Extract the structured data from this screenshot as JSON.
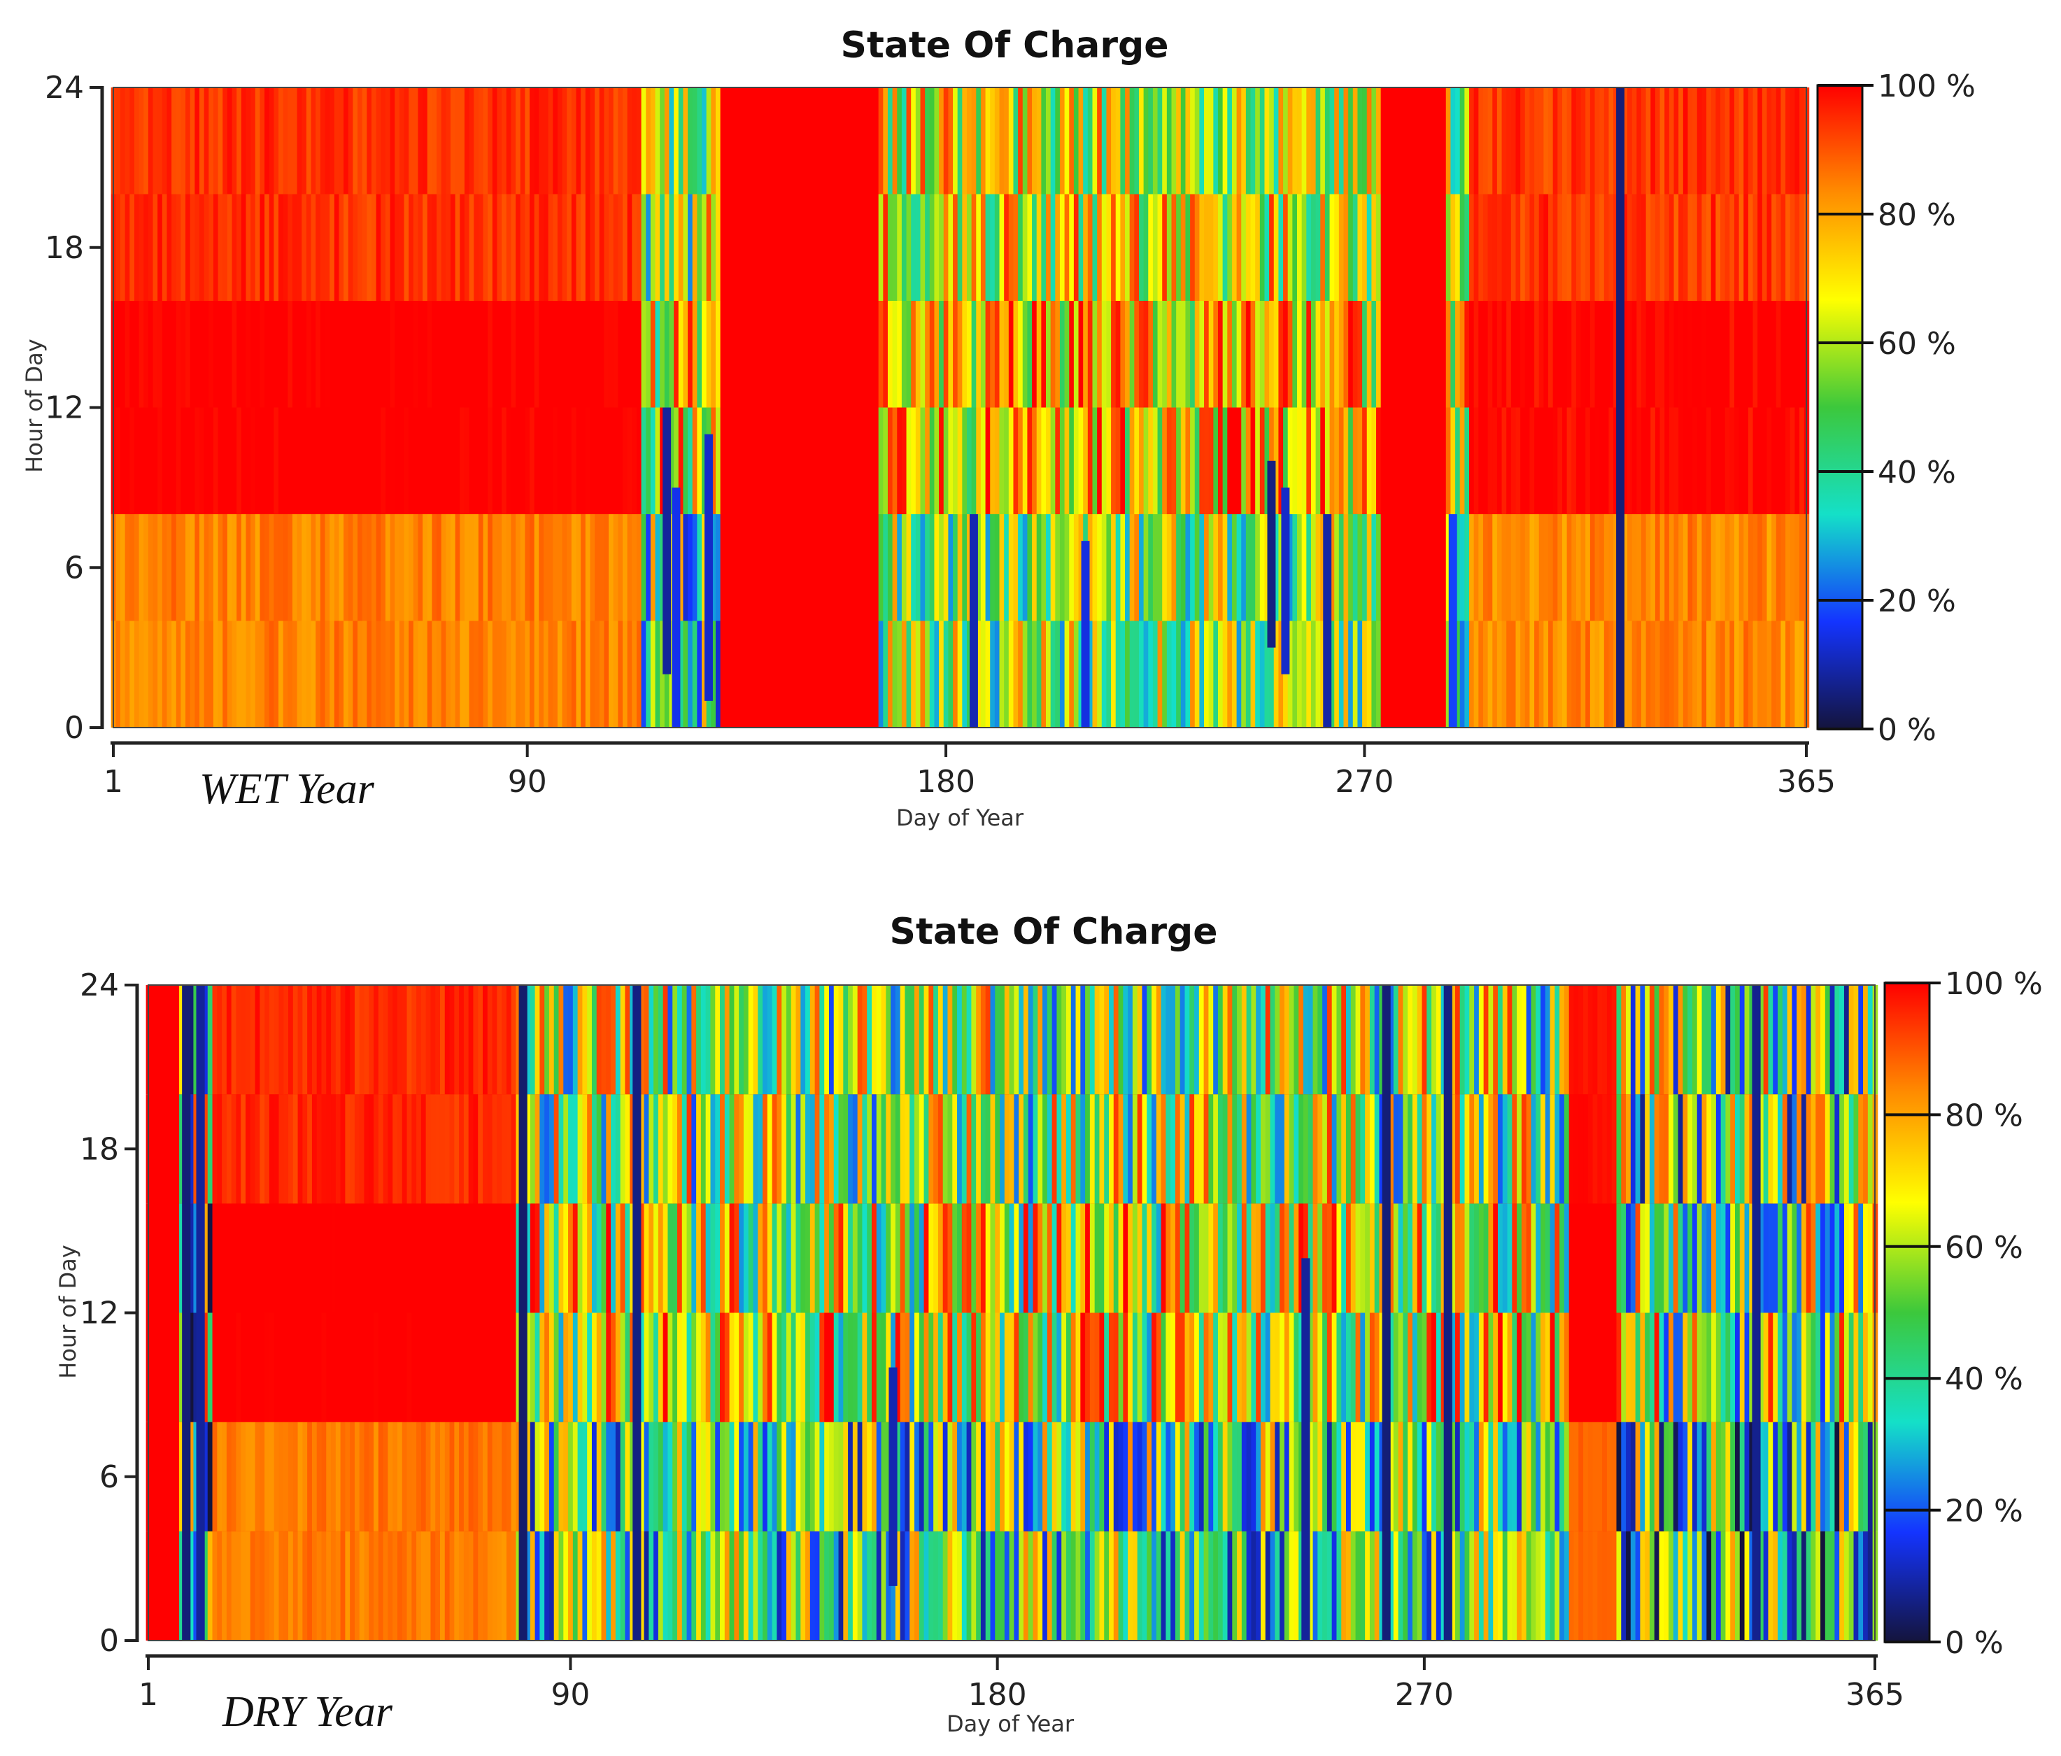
{
  "chart_data": [
    {
      "type": "heatmap",
      "title": "State Of Charge",
      "panel_label": "WET Year",
      "xlabel": "Day of Year",
      "ylabel": "Hour of Day",
      "xlim": [
        1,
        365
      ],
      "ylim": [
        0,
        24
      ],
      "x_ticks": [
        "1",
        "90",
        "180",
        "270",
        "365"
      ],
      "y_ticks": [
        "0",
        "6",
        "12",
        "18",
        "24"
      ],
      "colorbar": {
        "min": 0,
        "max": 100,
        "ticks": [
          "0 %",
          "20 %",
          "40 %",
          "60 %",
          "80 %",
          "100 %"
        ]
      },
      "colormap": [
        "#14143c",
        "#1434ff",
        "#14e0c8",
        "#3cc83c",
        "#ffff00",
        "#ff8c00",
        "#ff0000"
      ],
      "dark_events": [
        {
          "day": 120,
          "from_hour": 2,
          "to_hour": 12,
          "soc": 8
        },
        {
          "day": 122,
          "from_hour": 0,
          "to_hour": 9,
          "soc": 15
        },
        {
          "day": 129,
          "from_hour": 1,
          "to_hour": 11,
          "soc": 12
        },
        {
          "day": 186,
          "from_hour": 0,
          "to_hour": 8,
          "soc": 10
        },
        {
          "day": 210,
          "from_hour": 0,
          "to_hour": 7,
          "soc": 14
        },
        {
          "day": 250,
          "from_hour": 3,
          "to_hour": 10,
          "soc": 6
        },
        {
          "day": 253,
          "from_hour": 2,
          "to_hour": 9,
          "soc": 12
        },
        {
          "day": 262,
          "from_hour": 0,
          "to_hour": 8,
          "soc": 9
        },
        {
          "day": 289,
          "from_hour": 0,
          "to_hour": 8,
          "soc": 18
        },
        {
          "day": 325,
          "from_hour": 0,
          "to_hour": 24,
          "soc": 5
        }
      ],
      "mean_soc_by_day": [
        {
          "from_day": 1,
          "to_day": 114,
          "soc": 94
        },
        {
          "from_day": 115,
          "to_day": 131,
          "soc": 55
        },
        {
          "from_day": 132,
          "to_day": 165,
          "soc": 100
        },
        {
          "from_day": 166,
          "to_day": 273,
          "soc": 62
        },
        {
          "from_day": 274,
          "to_day": 287,
          "soc": 100
        },
        {
          "from_day": 288,
          "to_day": 292,
          "soc": 60
        },
        {
          "from_day": 293,
          "to_day": 365,
          "soc": 93
        }
      ]
    },
    {
      "type": "heatmap",
      "title": "State Of Charge",
      "panel_label": "DRY Year",
      "xlabel": "Day of Year",
      "ylabel": "Hour of Day",
      "xlim": [
        1,
        365
      ],
      "ylim": [
        0,
        24
      ],
      "x_ticks": [
        "1",
        "90",
        "180",
        "270",
        "365"
      ],
      "y_ticks": [
        "0",
        "6",
        "12",
        "18",
        "24"
      ],
      "colorbar": {
        "min": 0,
        "max": 100,
        "ticks": [
          "0 %",
          "20 %",
          "40 %",
          "60 %",
          "80 %",
          "100 %"
        ]
      },
      "colormap": [
        "#14143c",
        "#1434ff",
        "#14e0c8",
        "#3cc83c",
        "#ffff00",
        "#ff8c00",
        "#ff0000"
      ],
      "dark_events": [
        {
          "day": 9,
          "from_hour": 0,
          "to_hour": 24,
          "soc": 5
        },
        {
          "day": 12,
          "from_hour": 0,
          "to_hour": 24,
          "soc": 8
        },
        {
          "day": 80,
          "from_hour": 0,
          "to_hour": 24,
          "soc": 4
        },
        {
          "day": 104,
          "from_hour": 0,
          "to_hour": 24,
          "soc": 6
        },
        {
          "day": 158,
          "from_hour": 2,
          "to_hour": 10,
          "soc": 10
        },
        {
          "day": 245,
          "from_hour": 0,
          "to_hour": 14,
          "soc": 8
        },
        {
          "day": 262,
          "from_hour": 0,
          "to_hour": 24,
          "soc": 5
        },
        {
          "day": 275,
          "from_hour": 0,
          "to_hour": 24,
          "soc": 6
        },
        {
          "day": 340,
          "from_hour": 0,
          "to_hour": 24,
          "soc": 7
        }
      ],
      "mean_soc_by_day": [
        {
          "from_day": 1,
          "to_day": 7,
          "soc": 100
        },
        {
          "from_day": 8,
          "to_day": 14,
          "soc": 35
        },
        {
          "from_day": 15,
          "to_day": 78,
          "soc": 95
        },
        {
          "from_day": 79,
          "to_day": 300,
          "soc": 52
        },
        {
          "from_day": 301,
          "to_day": 310,
          "soc": 98
        },
        {
          "from_day": 311,
          "to_day": 365,
          "soc": 45
        }
      ]
    }
  ]
}
